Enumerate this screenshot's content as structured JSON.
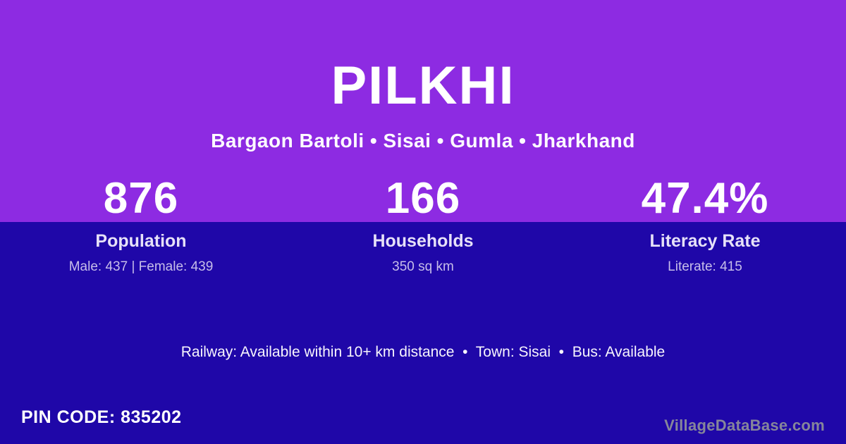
{
  "card": {
    "title": "PILKHI",
    "location_line": "Bargaon Bartoli • Sisai • Gumla • Jharkhand"
  },
  "stats": [
    {
      "value": "876",
      "label": "Population",
      "sub": "Male: 437 | Female: 439"
    },
    {
      "value": "166",
      "label": "Households",
      "sub": "350 sq km"
    },
    {
      "value": "47.4%",
      "label": "Literacy Rate",
      "sub": "Literate: 415"
    }
  ],
  "info_line": "Railway: Available within 10+ km distance  •  Town: Sisai  •  Bus: Available",
  "footer": {
    "pin_code": "PIN CODE: 835202",
    "brand": "VillageDataBase.com"
  },
  "colors": {
    "hero_purple": "#8d2be2",
    "background_navy": "#1f07a8",
    "label_lavender": "#e6e1f8",
    "sublabel_lavender": "#c6bde9",
    "brand_gray": "#86869a"
  }
}
